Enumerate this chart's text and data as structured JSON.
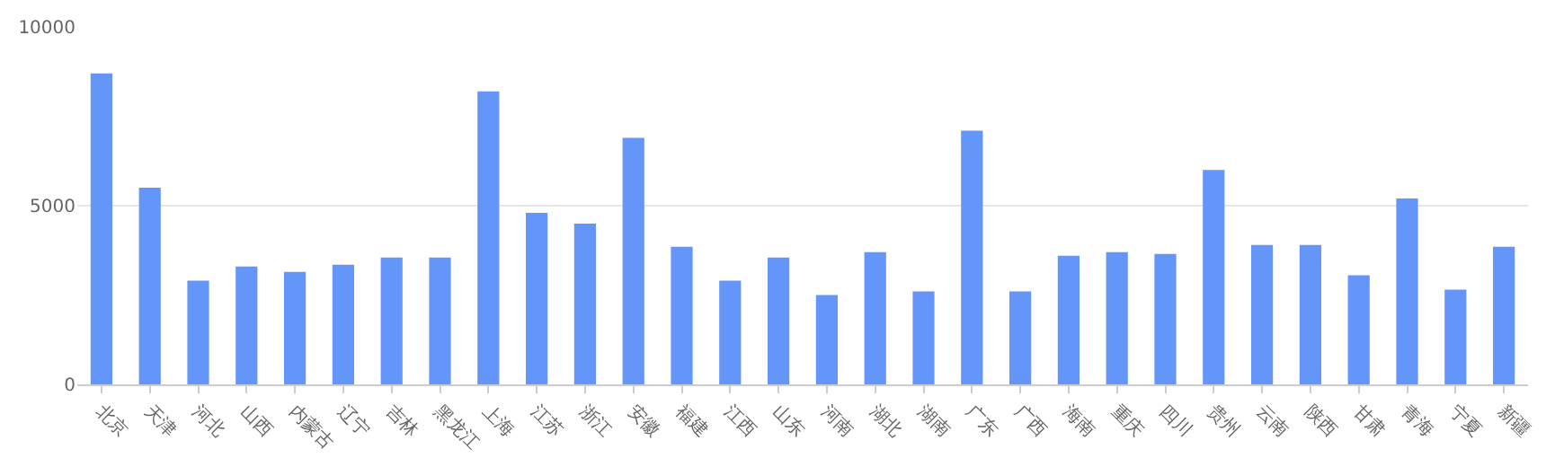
{
  "chart_data": {
    "type": "bar",
    "categories": [
      "北京",
      "天津",
      "河北",
      "山西",
      "内蒙古",
      "辽宁",
      "吉林",
      "黑龙江",
      "上海",
      "江苏",
      "浙江",
      "安徽",
      "福建",
      "江西",
      "山东",
      "河南",
      "湖北",
      "湖南",
      "广东",
      "广西",
      "海南",
      "重庆",
      "四川",
      "贵州",
      "云南",
      "陕西",
      "甘肃",
      "青海",
      "宁夏",
      "新疆"
    ],
    "values": [
      8700,
      5500,
      2900,
      3300,
      3150,
      3350,
      3550,
      3550,
      8200,
      4800,
      4500,
      6900,
      3850,
      2900,
      3550,
      2500,
      3700,
      2600,
      7100,
      2600,
      3600,
      3700,
      3650,
      6000,
      3900,
      3900,
      3050,
      5200,
      2650,
      3850
    ],
    "color": "#6495f8",
    "ylim": [
      0,
      10000
    ],
    "yticks": [
      0,
      5000,
      10000
    ],
    "grid": "y"
  }
}
